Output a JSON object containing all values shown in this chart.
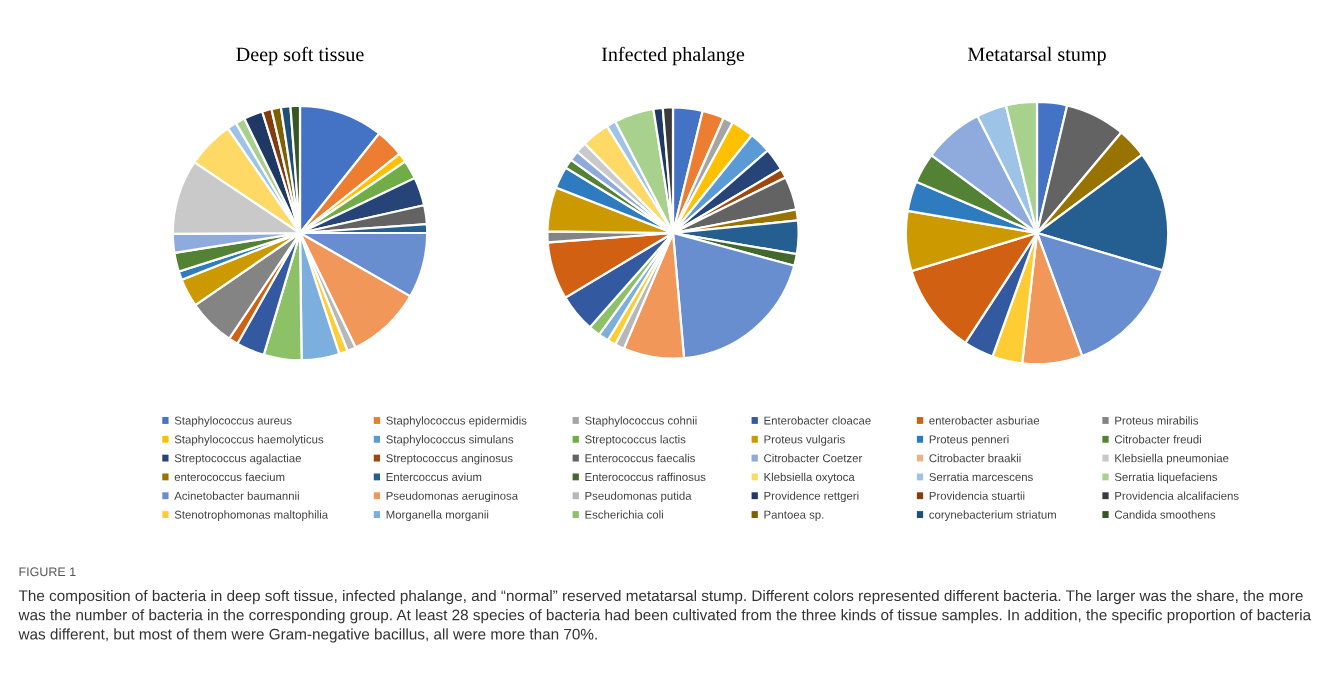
{
  "chart_data": [
    {
      "type": "pie",
      "title": "Deep soft tissue",
      "legend": "bottom",
      "categories": [
        "Staphylococcus aureus",
        "Staphylococcus epidermidis",
        "Staphylococcus cohnii",
        "Staphylococcus haemolyticus",
        "Staphylococcus simulans",
        "Streptococcus lactis",
        "Streptococcus agalactiae",
        "Streptococcus anginosus",
        "Enterococcus faecalis",
        "enterococcus faecium",
        "Entercoccus avium",
        "Enterococcus raffinosus",
        "Acinetobacter baumannii",
        "Pseudomonas aeruginosa",
        "Pseudomonas putida",
        "Stenotrophomonas maltophilia",
        "Morganella morganii",
        "Escherichia coli",
        "Enterobacter cloacae",
        "enterobacter asburiae",
        "Proteus mirabilis",
        "Proteus vulgaris",
        "Proteus penneri",
        "Citrobacter freudi",
        "Citrobacter Coetzer",
        "Citrobacter braakii",
        "Klebsiella pneumoniae",
        "Klebsiella oxytoca",
        "Serratia marcescens",
        "Serratia liquefaciens",
        "Providence rettgeri",
        "Providencia stuartii",
        "Providencia alcalifaciens",
        "Pantoea sp.",
        "corynebacterium striatum",
        "Candida smoothens"
      ],
      "values": [
        10.7,
        3.6,
        0,
        1.2,
        0,
        2.4,
        3.6,
        0,
        2.4,
        0,
        1.1,
        0,
        8.3,
        9.5,
        1.1,
        1.1,
        4.8,
        4.8,
        3.6,
        1.2,
        6.0,
        3.6,
        1.1,
        2.4,
        2.4,
        0,
        9.5,
        6.0,
        1.2,
        1.2,
        2.4,
        1.2,
        0,
        1.2,
        1.2,
        1.2
      ],
      "colors": [
        "#4472c4",
        "#ed7d31",
        "#a5a5a5",
        "#ffc000",
        "#5b9bd5",
        "#70ad47",
        "#264478",
        "#9e480e",
        "#636363",
        "#997300",
        "#255e91",
        "#43682b",
        "#698ed0",
        "#f1975a",
        "#b7b7b7",
        "#ffcd33",
        "#7cafdd",
        "#8cc168",
        "#335aa1",
        "#d26012",
        "#848484",
        "#cc9a00",
        "#2f7bc0",
        "#548235",
        "#8faadc",
        "#f4b183",
        "#c9c9c9",
        "#ffd966",
        "#9dc3e6",
        "#a9d18e",
        "#1f3864",
        "#843c0c",
        "#3a3a3a",
        "#7f6000",
        "#1f4e79",
        "#375623"
      ],
      "annotations": [
        "FIGURE 1",
        "The composition of bacteria in deep soft tissue, infected phalange, and “normal” reserved metatarsal stump. Different colors represented different bacteria. The larger was the share, the more was the number of bacteria in the corresponding group. At least 28 species of bacteria had been cultivated from the three kinds of tissue samples. In addition, the specific proportion of bacteria was different, but most of them were Gram-negative bacillus, all were more than 70%."
      ]
    },
    {
      "type": "pie",
      "title": "Infected phalange",
      "categories": [
        null,
        null,
        null,
        null,
        null,
        null,
        null,
        null,
        null,
        null,
        null,
        null,
        null,
        null,
        null,
        null,
        null,
        null,
        null,
        null,
        null,
        null,
        null,
        null,
        null,
        null,
        null,
        null,
        null,
        null,
        null,
        null,
        null,
        null,
        null,
        null
      ],
      "values": [
        3.8,
        2.8,
        1.3,
        2.9,
        2.8,
        0,
        2.9,
        1.2,
        4.3,
        1.4,
        4.3,
        1.5,
        19.4,
        7.8,
        1.2,
        1.1,
        1.3,
        1.5,
        4.9,
        7.4,
        1.4,
        5.7,
        2.8,
        1.2,
        1.3,
        0,
        1.4,
        3.6,
        1.2,
        5.1,
        1.2,
        0,
        1.3,
        0,
        0,
        0
      ],
      "colors": [
        "#4472c4",
        "#ed7d31",
        "#a5a5a5",
        "#ffc000",
        "#5b9bd5",
        "#70ad47",
        "#264478",
        "#9e480e",
        "#636363",
        "#997300",
        "#255e91",
        "#43682b",
        "#698ed0",
        "#f1975a",
        "#b7b7b7",
        "#ffcd33",
        "#7cafdd",
        "#8cc168",
        "#335aa1",
        "#d26012",
        "#848484",
        "#cc9a00",
        "#2f7bc0",
        "#548235",
        "#8faadc",
        "#f4b183",
        "#c9c9c9",
        "#ffd966",
        "#9dc3e6",
        "#a9d18e",
        "#1f3864",
        "#843c0c",
        "#3a3a3a",
        "#7f6000",
        "#1f4e79",
        "#375623"
      ]
    },
    {
      "type": "pie",
      "title": "Metatarsal stump",
      "categories": [
        null,
        null,
        null,
        null,
        null,
        null,
        null,
        null,
        null,
        null,
        null,
        null,
        null,
        null,
        null,
        null,
        null,
        null,
        null,
        null,
        null,
        null,
        null,
        null,
        null,
        null,
        null,
        null,
        null,
        null,
        null,
        null,
        null,
        null,
        null,
        null
      ],
      "values": [
        3.7,
        0,
        0,
        0,
        0,
        0,
        0,
        0,
        7.4,
        3.7,
        14.8,
        0,
        14.8,
        7.4,
        0,
        3.7,
        0,
        0,
        3.7,
        11.1,
        0,
        7.4,
        3.7,
        3.7,
        7.4,
        0,
        0,
        0,
        3.7,
        3.8,
        0,
        0,
        0,
        0,
        0,
        0
      ],
      "colors": [
        "#4472c4",
        "#ed7d31",
        "#a5a5a5",
        "#ffc000",
        "#5b9bd5",
        "#70ad47",
        "#264478",
        "#9e480e",
        "#636363",
        "#997300",
        "#255e91",
        "#43682b",
        "#698ed0",
        "#f1975a",
        "#b7b7b7",
        "#ffcd33",
        "#7cafdd",
        "#8cc168",
        "#335aa1",
        "#d26012",
        "#848484",
        "#cc9a00",
        "#2f7bc0",
        "#548235",
        "#8faadc",
        "#f4b183",
        "#c9c9c9",
        "#ffd966",
        "#9dc3e6",
        "#a9d18e",
        "#1f3864",
        "#843c0c",
        "#3a3a3a",
        "#7f6000",
        "#1f4e79",
        "#375623"
      ]
    }
  ]
}
